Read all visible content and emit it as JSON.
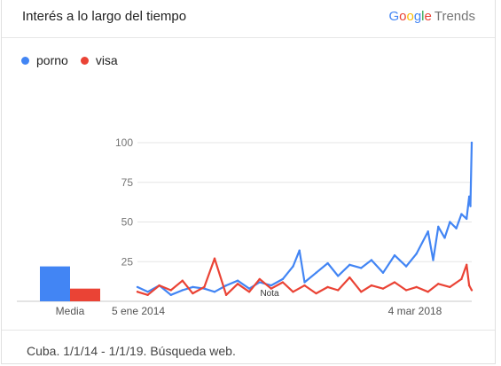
{
  "header": {
    "title": "Interés a lo largo del tiempo",
    "brand_google": "Google",
    "brand_trends": "Trends"
  },
  "legend": [
    {
      "label": "porno",
      "color": "#4285f4"
    },
    {
      "label": "visa",
      "color": "#ea4335"
    }
  ],
  "footer": {
    "text": "Cuba. 1/1/14 - 1/1/19. Búsqueda web."
  },
  "chart_data": {
    "type": "line",
    "title": "",
    "xlabel": "",
    "ylabel": "",
    "ylim": [
      0,
      100
    ],
    "y_ticks": [
      25,
      50,
      75,
      100
    ],
    "x_tick_labels": [
      "5 ene 2014",
      "4 mar 2018"
    ],
    "note_label": "Nota",
    "x_range": [
      "2014-01-05",
      "2018-12-30"
    ],
    "grid": true,
    "legend_position": "top-left",
    "average_bars": {
      "label": "Media",
      "values": [
        {
          "name": "porno",
          "value": 22
        },
        {
          "name": "visa",
          "value": 8
        }
      ]
    },
    "series": [
      {
        "name": "porno",
        "color": "#4285f4",
        "points": [
          [
            "2014-01-05",
            9
          ],
          [
            "2014-03-02",
            6
          ],
          [
            "2014-05-04",
            10
          ],
          [
            "2014-07-06",
            4
          ],
          [
            "2014-09-07",
            7
          ],
          [
            "2014-11-02",
            9
          ],
          [
            "2015-01-04",
            8
          ],
          [
            "2015-03-01",
            6
          ],
          [
            "2015-05-03",
            10
          ],
          [
            "2015-07-05",
            13
          ],
          [
            "2015-09-06",
            8
          ],
          [
            "2015-11-01",
            12
          ],
          [
            "2016-01-03",
            10
          ],
          [
            "2016-03-06",
            14
          ],
          [
            "2016-05-01",
            22
          ],
          [
            "2016-06-05",
            32
          ],
          [
            "2016-07-03",
            12
          ],
          [
            "2016-09-04",
            18
          ],
          [
            "2016-11-06",
            24
          ],
          [
            "2017-01-01",
            16
          ],
          [
            "2017-03-05",
            23
          ],
          [
            "2017-05-07",
            21
          ],
          [
            "2017-07-02",
            26
          ],
          [
            "2017-09-03",
            18
          ],
          [
            "2017-11-05",
            29
          ],
          [
            "2018-01-07",
            22
          ],
          [
            "2018-03-04",
            30
          ],
          [
            "2018-05-06",
            44
          ],
          [
            "2018-06-03",
            26
          ],
          [
            "2018-07-01",
            47
          ],
          [
            "2018-08-05",
            40
          ],
          [
            "2018-09-02",
            50
          ],
          [
            "2018-10-07",
            46
          ],
          [
            "2018-11-04",
            55
          ],
          [
            "2018-12-02",
            52
          ],
          [
            "2018-12-16",
            66
          ],
          [
            "2018-12-23",
            60
          ],
          [
            "2018-12-30",
            100
          ]
        ]
      },
      {
        "name": "visa",
        "color": "#ea4335",
        "points": [
          [
            "2014-01-05",
            6
          ],
          [
            "2014-03-02",
            4
          ],
          [
            "2014-05-04",
            10
          ],
          [
            "2014-07-06",
            7
          ],
          [
            "2014-09-07",
            13
          ],
          [
            "2014-11-02",
            5
          ],
          [
            "2015-01-04",
            9
          ],
          [
            "2015-03-01",
            27
          ],
          [
            "2015-05-03",
            4
          ],
          [
            "2015-07-05",
            11
          ],
          [
            "2015-09-06",
            6
          ],
          [
            "2015-11-01",
            14
          ],
          [
            "2016-01-03",
            8
          ],
          [
            "2016-03-06",
            12
          ],
          [
            "2016-05-01",
            6
          ],
          [
            "2016-07-03",
            10
          ],
          [
            "2016-09-04",
            5
          ],
          [
            "2016-11-06",
            9
          ],
          [
            "2017-01-01",
            7
          ],
          [
            "2017-03-05",
            15
          ],
          [
            "2017-05-07",
            6
          ],
          [
            "2017-07-02",
            10
          ],
          [
            "2017-09-03",
            8
          ],
          [
            "2017-11-05",
            12
          ],
          [
            "2018-01-07",
            7
          ],
          [
            "2018-03-04",
            9
          ],
          [
            "2018-05-06",
            6
          ],
          [
            "2018-07-01",
            11
          ],
          [
            "2018-09-02",
            9
          ],
          [
            "2018-11-04",
            14
          ],
          [
            "2018-12-02",
            23
          ],
          [
            "2018-12-16",
            10
          ],
          [
            "2018-12-30",
            7
          ]
        ]
      }
    ]
  }
}
